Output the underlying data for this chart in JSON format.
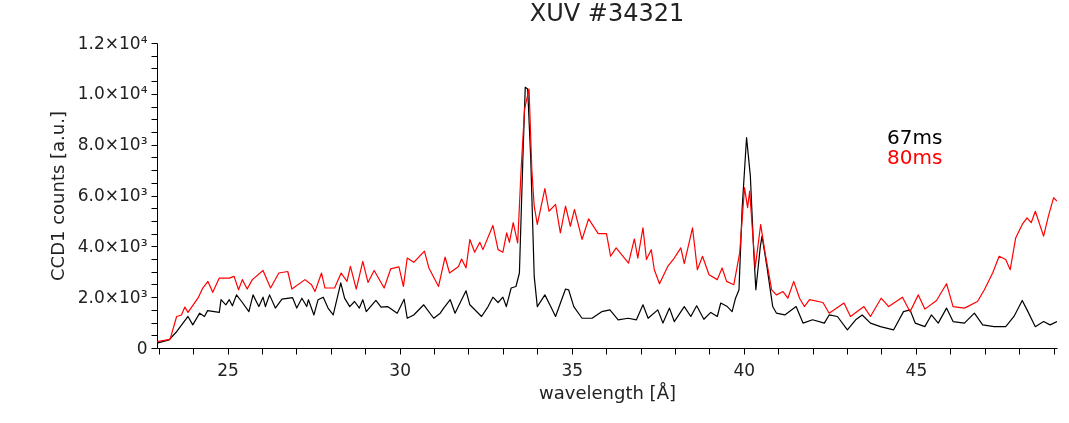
{
  "chart_data": {
    "type": "line",
    "title": "XUV #34321",
    "xlabel": "wavelength [Å]",
    "ylabel": "CCD1 counts [a.u.]",
    "xlim": [
      22.95,
      49.1
    ],
    "xticks": [
      {
        "value": 23,
        "label": null
      },
      {
        "value": 24,
        "label": null
      },
      25,
      {
        "value": 26,
        "label": null
      },
      {
        "value": 27,
        "label": null
      },
      {
        "value": 28,
        "label": null
      },
      {
        "value": 29,
        "label": null
      },
      30,
      {
        "value": 31,
        "label": null
      },
      {
        "value": 32,
        "label": null
      },
      {
        "value": 33,
        "label": null
      },
      {
        "value": 34,
        "label": null
      },
      35,
      {
        "value": 36,
        "label": null
      },
      {
        "value": 37,
        "label": null
      },
      {
        "value": 38,
        "label": null
      },
      {
        "value": 39,
        "label": null
      },
      40,
      {
        "value": 41,
        "label": null
      },
      {
        "value": 42,
        "label": null
      },
      {
        "value": 43,
        "label": null
      },
      {
        "value": 44,
        "label": null
      },
      45,
      {
        "value": 46,
        "label": null
      },
      {
        "value": 47,
        "label": null
      },
      {
        "value": 48,
        "label": null
      },
      {
        "value": 49,
        "label": null
      }
    ],
    "ylim": [
      0,
      12000
    ],
    "yticks": [
      0,
      {
        "value": 500,
        "label": null
      },
      {
        "value": 1000,
        "label": null
      },
      {
        "value": 1500,
        "label": null
      },
      {
        "value": 2000,
        "label": "2.0×10³"
      },
      {
        "value": 2500,
        "label": null
      },
      {
        "value": 3000,
        "label": null
      },
      {
        "value": 3500,
        "label": null
      },
      {
        "value": 4000,
        "label": "4.0×10³"
      },
      {
        "value": 4500,
        "label": null
      },
      {
        "value": 5000,
        "label": null
      },
      {
        "value": 5500,
        "label": null
      },
      {
        "value": 6000,
        "label": "6.0×10³"
      },
      {
        "value": 6500,
        "label": null
      },
      {
        "value": 7000,
        "label": null
      },
      {
        "value": 7500,
        "label": null
      },
      {
        "value": 8000,
        "label": "8.0×10³"
      },
      {
        "value": 8500,
        "label": null
      },
      {
        "value": 9000,
        "label": null
      },
      {
        "value": 9500,
        "label": null
      },
      {
        "value": 10000,
        "label": "1.0×10⁴"
      },
      {
        "value": 10500,
        "label": null
      },
      {
        "value": 11000,
        "label": null
      },
      {
        "value": 11500,
        "label": null
      },
      {
        "value": 12000,
        "label": "1.2×10⁴"
      }
    ],
    "grid": false,
    "legend": "right",
    "marker": "none",
    "line_style": "solid",
    "series": [
      {
        "name": "67ms",
        "color": "#000000",
        "x": [
          22.95,
          23.3,
          23.52,
          23.85,
          23.99,
          24.19,
          24.33,
          24.42,
          24.76,
          24.81,
          24.95,
          25.05,
          25.14,
          25.26,
          25.43,
          25.62,
          25.74,
          25.91,
          26.03,
          26.1,
          26.22,
          26.39,
          26.58,
          26.89,
          27.01,
          27.16,
          27.3,
          27.35,
          27.51,
          27.63,
          27.78,
          27.92,
          28.07,
          28.29,
          28.4,
          28.55,
          28.69,
          28.83,
          28.93,
          29.03,
          29.31,
          29.46,
          29.65,
          29.93,
          30.13,
          30.22,
          30.41,
          30.7,
          30.99,
          31.18,
          31.28,
          31.47,
          31.61,
          31.8,
          31.93,
          32.04,
          32.38,
          32.57,
          32.71,
          32.86,
          33.0,
          33.1,
          33.24,
          33.38,
          33.48,
          33.58,
          33.65,
          33.72,
          33.81,
          33.91,
          34.0,
          34.22,
          34.39,
          34.53,
          34.82,
          34.91,
          35.06,
          35.3,
          35.59,
          35.87,
          36.11,
          36.35,
          36.64,
          36.88,
          37.07,
          37.22,
          37.5,
          37.65,
          37.84,
          37.98,
          38.27,
          38.46,
          38.63,
          38.84,
          39.04,
          39.23,
          39.33,
          39.52,
          39.66,
          39.76,
          39.86,
          39.95,
          40.08,
          40.19,
          40.29,
          40.35,
          40.48,
          40.53,
          40.67,
          40.84,
          40.95,
          41.19,
          41.52,
          41.72,
          42.0,
          42.34,
          42.48,
          42.72,
          43.01,
          43.25,
          43.44,
          43.68,
          43.97,
          44.35,
          44.64,
          44.83,
          44.98,
          45.26,
          45.45,
          45.65,
          45.89,
          46.08,
          46.41,
          46.7,
          46.94,
          47.27,
          47.61,
          47.85,
          48.09,
          48.23,
          48.47,
          48.71,
          48.9,
          49.1
        ],
        "values": [
          190,
          320,
          640,
          1240,
          910,
          1370,
          1240,
          1470,
          1400,
          1900,
          1700,
          1900,
          1660,
          2090,
          1790,
          1430,
          2090,
          1630,
          2000,
          1630,
          2090,
          1570,
          1920,
          1980,
          1570,
          1960,
          1630,
          1900,
          1300,
          1900,
          2000,
          1570,
          1300,
          2560,
          1960,
          1630,
          1830,
          1570,
          1900,
          1430,
          1870,
          1610,
          1630,
          1370,
          1920,
          1170,
          1300,
          1700,
          1170,
          1370,
          1570,
          1900,
          1370,
          1900,
          2250,
          1700,
          1240,
          1630,
          2000,
          1790,
          2000,
          1630,
          2360,
          2420,
          2950,
          7430,
          10260,
          10190,
          7430,
          2820,
          1630,
          2090,
          1630,
          1240,
          2320,
          2290,
          1630,
          1170,
          1170,
          1430,
          1500,
          1110,
          1170,
          1110,
          1700,
          1170,
          1500,
          980,
          1570,
          1040,
          1630,
          1240,
          1660,
          1130,
          1400,
          1240,
          1770,
          1630,
          1430,
          1960,
          2290,
          5450,
          8280,
          6770,
          3740,
          2290,
          4000,
          4400,
          3210,
          1630,
          1370,
          1300,
          1630,
          980,
          1110,
          980,
          1300,
          1240,
          710,
          1110,
          1300,
          980,
          840,
          710,
          1430,
          1500,
          980,
          840,
          1300,
          980,
          1570,
          1040,
          980,
          1370,
          910,
          840,
          840,
          1240,
          1870,
          1500,
          840,
          1040,
          910,
          1040
        ]
      },
      {
        "name": "80ms",
        "color": "#ff0000",
        "x": [
          22.95,
          23.33,
          23.52,
          23.66,
          23.76,
          23.85,
          24.14,
          24.28,
          24.43,
          24.57,
          24.76,
          25.05,
          25.19,
          25.32,
          25.43,
          25.57,
          25.72,
          26.03,
          26.25,
          26.49,
          26.75,
          26.87,
          27.25,
          27.44,
          27.54,
          27.73,
          27.83,
          28.11,
          28.3,
          28.47,
          28.57,
          28.74,
          28.93,
          29.08,
          29.26,
          29.55,
          29.74,
          29.98,
          30.11,
          30.22,
          30.41,
          30.72,
          30.85,
          31.13,
          31.32,
          31.45,
          31.71,
          31.8,
          31.93,
          32.04,
          32.18,
          32.33,
          32.42,
          32.71,
          32.86,
          33.0,
          33.11,
          33.19,
          33.3,
          33.43,
          33.53,
          33.63,
          33.76,
          33.84,
          33.91,
          34.0,
          34.22,
          34.34,
          34.53,
          34.67,
          34.82,
          34.96,
          35.08,
          35.3,
          35.49,
          35.77,
          36.01,
          36.13,
          36.29,
          36.65,
          36.82,
          36.92,
          37.07,
          37.17,
          37.31,
          37.4,
          37.55,
          37.79,
          37.98,
          38.17,
          38.27,
          38.51,
          38.65,
          38.8,
          38.99,
          39.23,
          39.37,
          39.5,
          39.71,
          39.88,
          40.02,
          40.11,
          40.17,
          40.33,
          40.49,
          40.61,
          40.81,
          40.95,
          41.14,
          41.28,
          41.45,
          41.62,
          41.76,
          41.91,
          42.3,
          42.48,
          42.91,
          43.1,
          43.49,
          43.68,
          43.99,
          44.21,
          44.61,
          44.83,
          45.07,
          45.26,
          45.6,
          45.89,
          46.08,
          46.41,
          46.79,
          46.99,
          47.23,
          47.42,
          47.61,
          47.74,
          47.9,
          48.09,
          48.23,
          48.35,
          48.47,
          48.71,
          48.85,
          49.0,
          49.1
        ],
        "values": [
          250,
          340,
          1240,
          1300,
          1610,
          1400,
          1960,
          2360,
          2620,
          2190,
          2750,
          2750,
          2820,
          2290,
          2690,
          2320,
          2690,
          3050,
          2360,
          2950,
          3010,
          2320,
          2690,
          2490,
          2220,
          2950,
          2360,
          2360,
          2950,
          2620,
          3210,
          2320,
          3410,
          2580,
          3050,
          2360,
          3110,
          3190,
          2420,
          3540,
          3370,
          3810,
          3150,
          2420,
          3580,
          2950,
          3210,
          3500,
          3150,
          4270,
          3770,
          4160,
          3870,
          4820,
          3870,
          3770,
          4530,
          4160,
          4930,
          4130,
          7030,
          9400,
          10190,
          7030,
          5580,
          4860,
          6270,
          5380,
          5650,
          4530,
          5580,
          4790,
          5450,
          4270,
          5080,
          4500,
          4500,
          3610,
          3940,
          3340,
          4290,
          3540,
          4730,
          3480,
          3870,
          3080,
          2530,
          3210,
          3540,
          3940,
          3320,
          4730,
          3080,
          3610,
          2880,
          2690,
          3150,
          2620,
          2490,
          3740,
          6310,
          5520,
          6170,
          3150,
          4860,
          3810,
          2290,
          2090,
          2220,
          1960,
          2620,
          1960,
          1630,
          1900,
          1790,
          1370,
          1770,
          1240,
          1630,
          1240,
          1960,
          1630,
          2000,
          1430,
          2090,
          1530,
          1870,
          2530,
          1630,
          1570,
          1830,
          2290,
          2950,
          3610,
          3480,
          3080,
          4330,
          4860,
          5120,
          4930,
          5380,
          4400,
          5190,
          5910,
          5780
        ]
      }
    ]
  }
}
